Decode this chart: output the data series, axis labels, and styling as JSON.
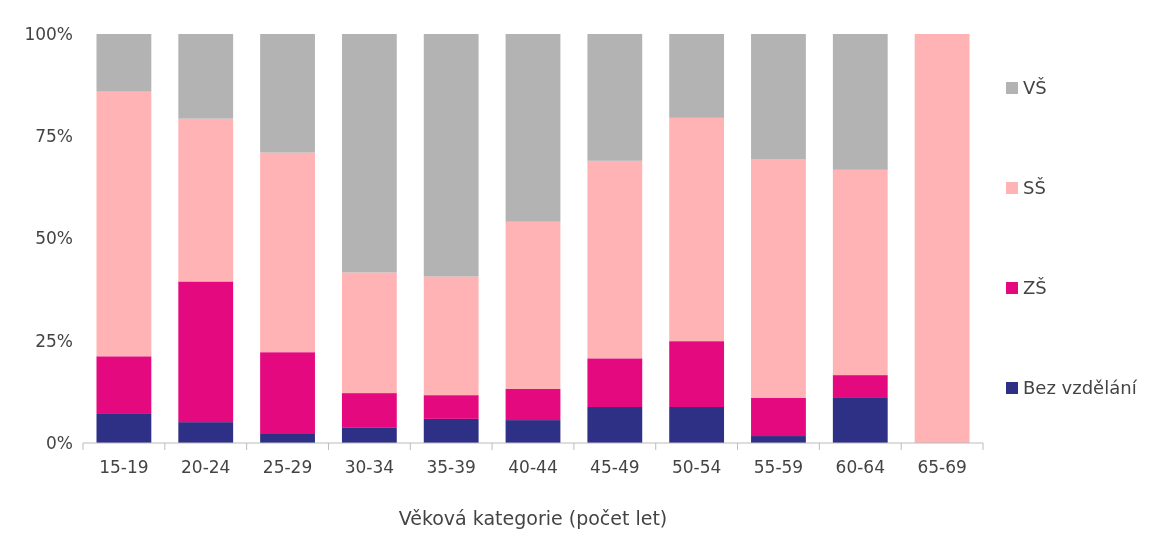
{
  "chart_data": {
    "type": "bar",
    "stacked": true,
    "xlabel": "Věková kategorie (počet let)",
    "categories": [
      "15-19",
      "20-24",
      "25-29",
      "30-34",
      "35-39",
      "40-44",
      "45-49",
      "50-54",
      "55-59",
      "60-64",
      "65-69"
    ],
    "series": [
      {
        "name": "Bez vzdělání",
        "color": "#2e3085",
        "values": [
          7.1,
          5.1,
          2.2,
          3.7,
          5.9,
          5.6,
          8.8,
          8.8,
          1.7,
          11.2,
          0
        ]
      },
      {
        "name": "ZŠ",
        "color": "#e4097f",
        "values": [
          14.1,
          34.4,
          20,
          8.5,
          5.8,
          7.6,
          11.9,
          16.1,
          9.3,
          5.4,
          0
        ]
      },
      {
        "name": "SŠ",
        "color": "#ffb3b5",
        "values": [
          64.7,
          39.8,
          48.8,
          29.5,
          29,
          40.9,
          48.3,
          54.6,
          58.3,
          50.2,
          100
        ]
      },
      {
        "name": "VŠ",
        "color": "#b3b3b3",
        "values": [
          14.1,
          20.7,
          29,
          58.3,
          59.3,
          45.9,
          31,
          20.5,
          30.7,
          33.2,
          0
        ]
      }
    ],
    "ylim": [
      0,
      100
    ],
    "yticks": [
      {
        "value": 0,
        "label": "0%"
      },
      {
        "value": 25,
        "label": "25%"
      },
      {
        "value": 50,
        "label": "50%"
      },
      {
        "value": 75,
        "label": "75%"
      },
      {
        "value": 100,
        "label": "100%"
      }
    ],
    "legend": "right"
  }
}
